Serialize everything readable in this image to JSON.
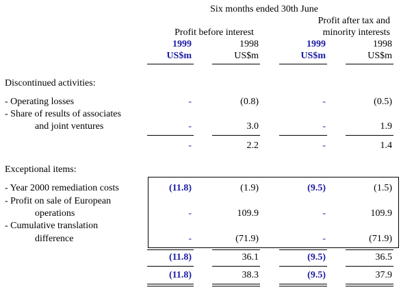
{
  "header": {
    "period": "Six months ended 30th June",
    "group1": "Profit before interest",
    "group2_line1": "Profit after tax and",
    "group2_line2": "minority interests",
    "year_current": "1999",
    "year_prior": "1998",
    "unit_current": "US$m",
    "unit_prior": "US$m"
  },
  "discontinued": {
    "heading": "Discontinued activities:",
    "rows": [
      {
        "label1": "-  Operating losses",
        "label2": "",
        "pbi_1999": "-",
        "pbi_1998": "(0.8)",
        "pat_1999": "-",
        "pat_1998": "(0.5)"
      },
      {
        "label1": "-  Share of results of associates",
        "label2": "and joint ventures",
        "pbi_1999": "-",
        "pbi_1998": "3.0",
        "pat_1999": "-",
        "pat_1998": "1.9"
      }
    ],
    "total": {
      "pbi_1999": "-",
      "pbi_1998": "2.2",
      "pat_1999": "-",
      "pat_1998": "1.4"
    }
  },
  "exceptional": {
    "heading": "Exceptional items:",
    "rows": [
      {
        "label1": "-  Year 2000 remediation costs",
        "label2": "",
        "pbi_1999": "(11.8)",
        "pbi_1998": "(1.9)",
        "pat_1999": "(9.5)",
        "pat_1998": "(1.5)"
      },
      {
        "label1": "-  Profit on sale of European",
        "label2": "operations",
        "pbi_1999": "-",
        "pbi_1998": "109.9",
        "pat_1999": "-",
        "pat_1998": "109.9"
      },
      {
        "label1": "-  Cumulative translation",
        "label2": "difference",
        "pbi_1999": "-",
        "pbi_1998": "(71.9)",
        "pat_1999": "-",
        "pat_1998": "(71.9)"
      }
    ],
    "subtotal": {
      "pbi_1999": "(11.8)",
      "pbi_1998": "36.1",
      "pat_1999": "(9.5)",
      "pat_1998": "36.5"
    },
    "grand_total": {
      "pbi_1999": "(11.8)",
      "pbi_1998": "38.3",
      "pat_1999": "(9.5)",
      "pat_1998": "37.9"
    }
  }
}
